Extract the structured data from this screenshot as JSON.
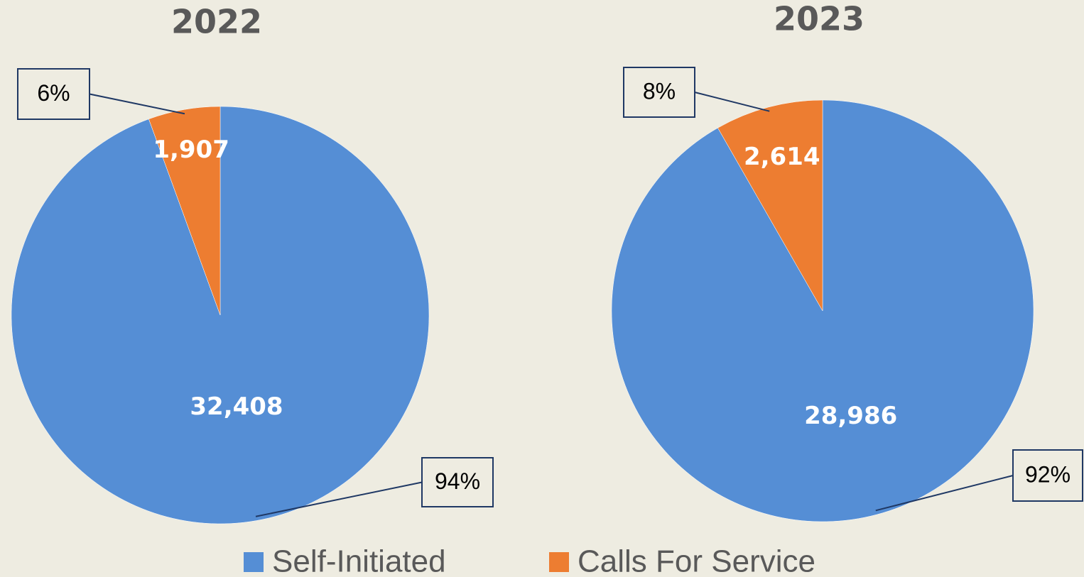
{
  "chart_data": [
    {
      "type": "pie",
      "title": "2022",
      "values": [
        32408,
        1907
      ],
      "value_labels": [
        "32,408",
        "1,907"
      ],
      "percent_labels": [
        "94%",
        "6%"
      ]
    },
    {
      "type": "pie",
      "title": "2023",
      "values": [
        28986,
        2614
      ],
      "value_labels": [
        "28,986",
        "2,614"
      ],
      "percent_labels": [
        "92%",
        "8%"
      ]
    }
  ],
  "legend": {
    "labels": [
      "Self-Initiated",
      "Calls For Service"
    ],
    "colors": [
      "#558ed5",
      "#ed7d31"
    ]
  }
}
